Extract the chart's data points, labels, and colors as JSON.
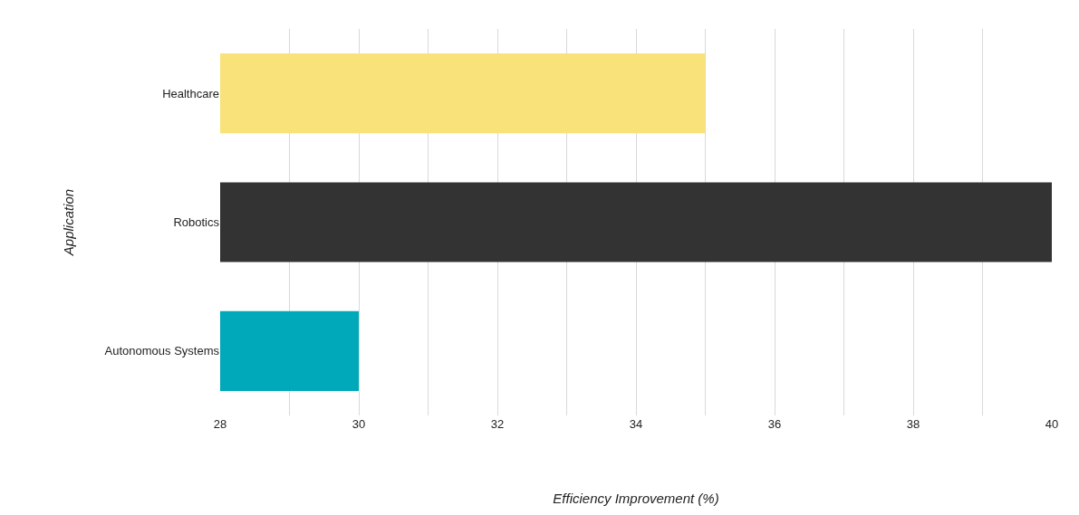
{
  "chart_data": {
    "type": "bar",
    "orientation": "horizontal",
    "xlabel": "Efficiency Improvement (%)",
    "ylabel": "Application",
    "categories": [
      "Healthcare",
      "Robotics",
      "Autonomous Systems"
    ],
    "values": [
      35,
      40,
      30
    ],
    "colors": [
      "#f9e27a",
      "#333333",
      "#00a9b9"
    ],
    "xlim": [
      28,
      40
    ],
    "xticks": [
      28,
      {
        "value": 29,
        "label": null
      },
      30,
      {
        "value": 31,
        "label": null
      },
      32,
      {
        "value": 33,
        "label": null
      },
      34,
      {
        "value": 35,
        "label": null
      },
      36,
      {
        "value": 37,
        "label": null
      },
      38,
      {
        "value": 39,
        "label": null
      },
      40
    ],
    "grid": "x",
    "legend": false
  }
}
